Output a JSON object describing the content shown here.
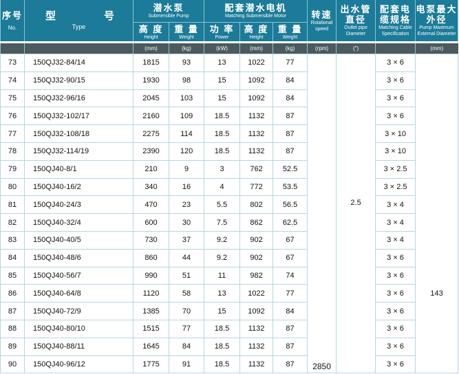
{
  "header": {
    "no": {
      "cn": "序号",
      "en": "No."
    },
    "type": {
      "cn1": "型",
      "cn2": "号",
      "en": "Type"
    },
    "pump": {
      "cn": "潜水泵",
      "en": "Submersible Pump"
    },
    "motor": {
      "cn": "配套潜水电机",
      "en": "Matching Submersible Motor"
    },
    "height": {
      "cn": "高 度",
      "en": "Height"
    },
    "weight": {
      "cn": "重 量",
      "en": "Weight"
    },
    "power": {
      "cn": "功 率",
      "en": "Power"
    },
    "speed": {
      "cn": "转速",
      "en": "Rotational speed"
    },
    "outlet": {
      "cn": "出水管直径",
      "en": "Outlet pipe Diameter"
    },
    "cable": {
      "cn": "配套电缆规格",
      "en": "Matching Cable Specification"
    },
    "diameter": {
      "cn": "电泵最大外径",
      "en": "Pump Maximum External Diameter"
    }
  },
  "units": {
    "pump_height": "(mm)",
    "pump_weight": "(kg)",
    "power": "(kW)",
    "motor_height": "(mm)",
    "motor_weight": "(kg)",
    "speed": "(rpm)",
    "outlet": "(\")",
    "cable": "",
    "diameter": "(mm)"
  },
  "shared": {
    "speed": "2850",
    "outlet": "2.5",
    "diameter": "143"
  },
  "rows": [
    [
      "73",
      "150QJ32-84/14",
      "1815",
      "93",
      "13",
      "1022",
      "77",
      "3 × 6"
    ],
    [
      "74",
      "150QJ32-90/15",
      "1930",
      "98",
      "15",
      "1092",
      "84",
      "3 × 6"
    ],
    [
      "75",
      "150QJ32-96/16",
      "2045",
      "103",
      "15",
      "1092",
      "84",
      "3 × 6"
    ],
    [
      "76",
      "150QJ32-102/17",
      "2160",
      "109",
      "18.5",
      "1132",
      "87",
      "3 × 6"
    ],
    [
      "77",
      "150QJ32-108/18",
      "2275",
      "114",
      "18.5",
      "1132",
      "87",
      "3 × 10"
    ],
    [
      "78",
      "150QJ32-114/19",
      "2390",
      "120",
      "18.5",
      "1132",
      "87",
      "3 × 10"
    ],
    [
      "79",
      "150QJ40-8/1",
      "210",
      "9",
      "3",
      "762",
      "52.5",
      "3 × 2.5"
    ],
    [
      "80",
      "150QJ40-16/2",
      "340",
      "16",
      "4",
      "772",
      "53.5",
      "3 × 2.5"
    ],
    [
      "81",
      "150QJ40-24/3",
      "470",
      "23",
      "5.5",
      "802",
      "56.5",
      "3 × 4"
    ],
    [
      "82",
      "150QJ40-32/4",
      "600",
      "30",
      "7.5",
      "862",
      "62.5",
      "3 × 4"
    ],
    [
      "83",
      "150QJ40-40/5",
      "730",
      "37",
      "9.2",
      "902",
      "67",
      "3 × 4"
    ],
    [
      "84",
      "150QJ40-48/6",
      "860",
      "44",
      "9.2",
      "902",
      "67",
      "3 × 6"
    ],
    [
      "85",
      "150QJ40-56/7",
      "990",
      "51",
      "11",
      "982",
      "74",
      "3 × 6"
    ],
    [
      "86",
      "150QJ40-64/8",
      "1120",
      "58",
      "13",
      "1022",
      "77",
      "3 × 6"
    ],
    [
      "87",
      "150QJ40-72/9",
      "1385",
      "70",
      "15",
      "1092",
      "84",
      "3 × 6"
    ],
    [
      "88",
      "150QJ40-80/10",
      "1515",
      "77",
      "18.5",
      "1132",
      "87",
      "3 × 6"
    ],
    [
      "89",
      "150QJ40-88/11",
      "1645",
      "84",
      "18.5",
      "1132",
      "87",
      "3 × 6"
    ],
    [
      "90",
      "150QJ40-96/12",
      "1775",
      "91",
      "18.5",
      "1132",
      "87",
      "3 × 6"
    ]
  ]
}
